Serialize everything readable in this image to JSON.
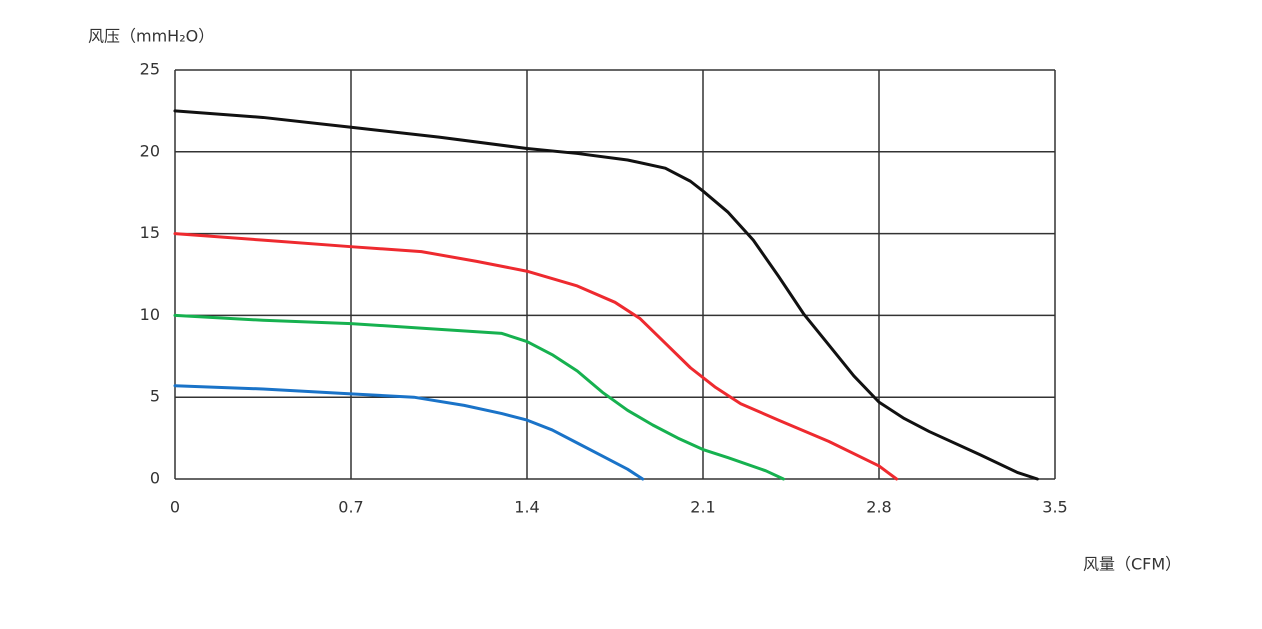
{
  "chart_data": {
    "type": "line",
    "y_label": "风压（mmH₂O）",
    "x_label": "风量（CFM）",
    "xlim": [
      0,
      3.5
    ],
    "xticks": [
      0,
      0.7,
      1.4,
      2.1,
      2.8,
      3.5
    ],
    "ylim": [
      0,
      25
    ],
    "yticks": [
      0,
      5,
      10,
      15,
      20,
      25
    ],
    "grid": true,
    "series": [
      {
        "color": "#111111",
        "x": [
          0,
          0.35,
          0.7,
          1.05,
          1.4,
          1.6,
          1.8,
          1.95,
          2.05,
          2.1,
          2.2,
          2.3,
          2.4,
          2.5,
          2.6,
          2.7,
          2.8,
          2.9,
          3.0,
          3.2,
          3.35,
          3.43
        ],
        "values": [
          22.5,
          22.1,
          21.5,
          20.9,
          20.2,
          19.9,
          19.5,
          19.0,
          18.2,
          17.6,
          16.3,
          14.6,
          12.4,
          10.1,
          8.2,
          6.3,
          4.7,
          3.7,
          2.9,
          1.5,
          0.4,
          0
        ]
      },
      {
        "color": "#ee2a2f",
        "x": [
          0,
          0.35,
          0.7,
          0.98,
          1.2,
          1.4,
          1.6,
          1.75,
          1.85,
          1.95,
          2.05,
          2.15,
          2.25,
          2.4,
          2.6,
          2.8,
          2.87
        ],
        "values": [
          15.0,
          14.6,
          14.2,
          13.9,
          13.3,
          12.7,
          11.8,
          10.8,
          9.8,
          8.3,
          6.8,
          5.6,
          4.6,
          3.6,
          2.3,
          0.8,
          0
        ]
      },
      {
        "color": "#16b14f",
        "x": [
          0,
          0.35,
          0.7,
          1.0,
          1.3,
          1.4,
          1.5,
          1.6,
          1.7,
          1.8,
          1.9,
          2.0,
          2.1,
          2.2,
          2.35,
          2.42
        ],
        "values": [
          10.0,
          9.7,
          9.5,
          9.2,
          8.9,
          8.4,
          7.6,
          6.6,
          5.3,
          4.2,
          3.3,
          2.5,
          1.8,
          1.3,
          0.5,
          0
        ]
      },
      {
        "color": "#1a73c8",
        "x": [
          0,
          0.35,
          0.7,
          0.95,
          1.15,
          1.3,
          1.4,
          1.5,
          1.6,
          1.7,
          1.8,
          1.86
        ],
        "values": [
          5.7,
          5.5,
          5.2,
          5.0,
          4.5,
          4.0,
          3.6,
          3.0,
          2.2,
          1.4,
          0.6,
          0
        ]
      }
    ]
  }
}
